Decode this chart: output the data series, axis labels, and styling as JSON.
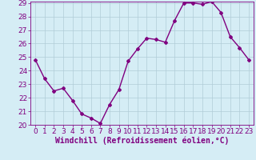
{
  "x": [
    0,
    1,
    2,
    3,
    4,
    5,
    6,
    7,
    8,
    9,
    10,
    11,
    12,
    13,
    14,
    15,
    16,
    17,
    18,
    19,
    20,
    21,
    22,
    23
  ],
  "y": [
    24.8,
    23.4,
    22.5,
    22.7,
    21.8,
    20.8,
    20.5,
    20.1,
    21.5,
    22.6,
    24.7,
    25.6,
    26.4,
    26.3,
    26.1,
    27.7,
    29.0,
    29.0,
    28.9,
    29.1,
    28.3,
    26.5,
    25.7,
    24.8
  ],
  "line_color": "#800080",
  "marker": "D",
  "marker_size": 2,
  "bg_color": "#d5edf5",
  "grid_color": "#b0cdd8",
  "xlabel": "Windchill (Refroidissement éolien,°C)",
  "ylim": [
    20,
    29
  ],
  "xlim": [
    -0.5,
    23.5
  ],
  "yticks": [
    20,
    21,
    22,
    23,
    24,
    25,
    26,
    27,
    28,
    29
  ],
  "xticks": [
    0,
    1,
    2,
    3,
    4,
    5,
    6,
    7,
    8,
    9,
    10,
    11,
    12,
    13,
    14,
    15,
    16,
    17,
    18,
    19,
    20,
    21,
    22,
    23
  ],
  "xlabel_fontsize": 7,
  "tick_fontsize": 6.5,
  "line_width": 1.0
}
